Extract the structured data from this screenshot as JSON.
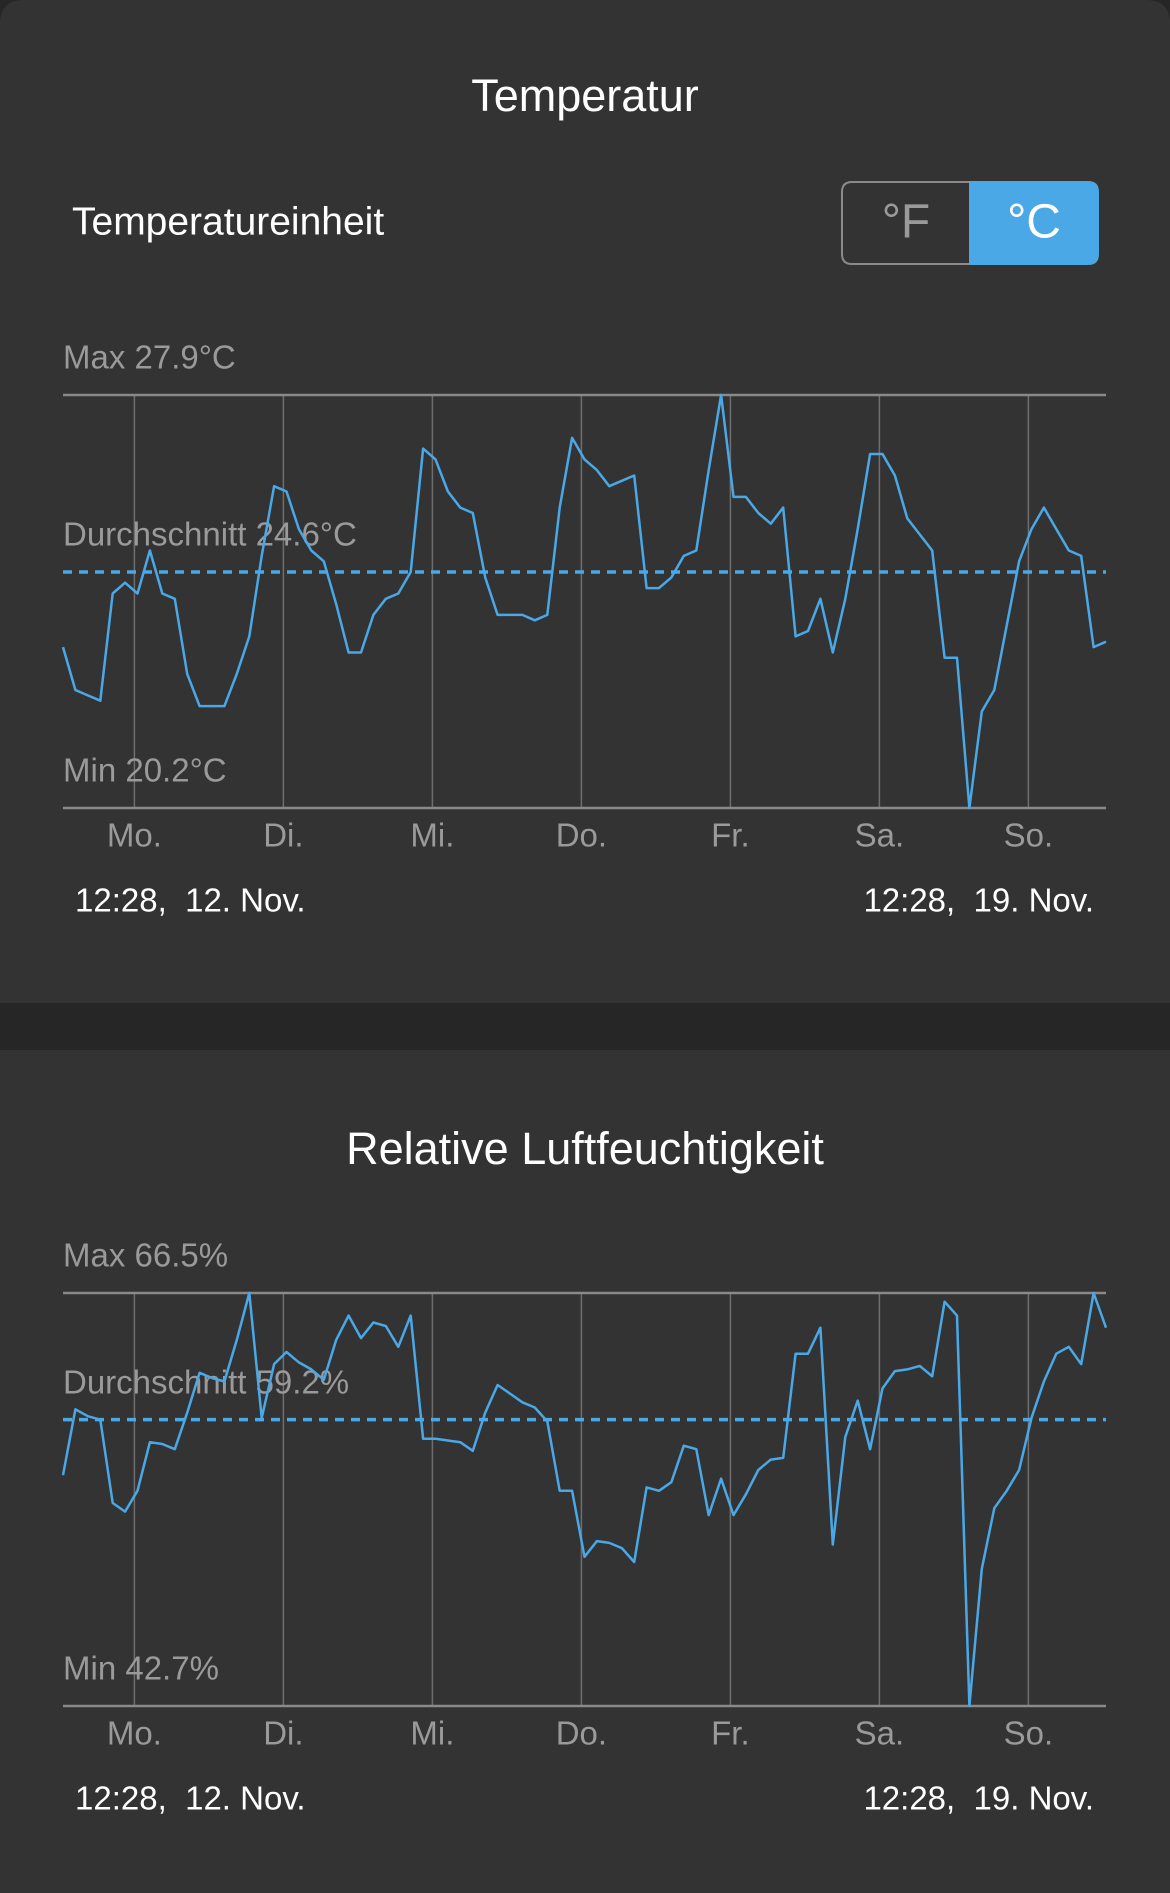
{
  "settings": {
    "unit_label": "Temperatureinheit",
    "unit_options": [
      "°F",
      "°C"
    ],
    "selected_unit": 1,
    "accent_color": "#4aa8e6"
  },
  "chart_data": [
    {
      "type": "line",
      "title": "Temperatur",
      "x": [
        0,
        2,
        4,
        6,
        8,
        10,
        12,
        14,
        16,
        18,
        20,
        22,
        24,
        26,
        28,
        30,
        32,
        34,
        36,
        38,
        40,
        42,
        44,
        46,
        48,
        50,
        52,
        54,
        56,
        58,
        60,
        62,
        64,
        66,
        68,
        70,
        72,
        74,
        76,
        78,
        80,
        82,
        84,
        86,
        88,
        90,
        92,
        94,
        96,
        98,
        100,
        102,
        104,
        106,
        108,
        110,
        112,
        114,
        116,
        118,
        120,
        122,
        124,
        126,
        128,
        130,
        132,
        134,
        136,
        138,
        140,
        142,
        144,
        146,
        148,
        150,
        152,
        154,
        156,
        158,
        160,
        162,
        164,
        166,
        168
      ],
      "series": [
        {
          "color": "#4aa8e6",
          "values": [
            23.2,
            22.4,
            22.3,
            22.2,
            24.2,
            24.4,
            24.2,
            25.0,
            24.2,
            24.1,
            22.7,
            22.1,
            22.1,
            22.1,
            22.7,
            23.4,
            24.9,
            26.2,
            26.1,
            25.4,
            25.0,
            24.8,
            24.0,
            23.1,
            23.1,
            23.8,
            24.1,
            24.2,
            24.6,
            26.9,
            26.7,
            26.1,
            25.8,
            25.7,
            24.5,
            23.8,
            23.8,
            23.8,
            23.7,
            23.8,
            25.8,
            27.1,
            26.7,
            26.5,
            26.2,
            26.3,
            26.4,
            24.3,
            24.3,
            24.5,
            24.9,
            25.0,
            26.5,
            27.9,
            26.0,
            26.0,
            25.7,
            25.5,
            25.8,
            23.4,
            23.5,
            24.1,
            23.1,
            24.1,
            25.4,
            26.8,
            26.8,
            26.4,
            25.6,
            25.3,
            25.0,
            23.0,
            23.0,
            20.2,
            22.0,
            22.4,
            23.6,
            24.8,
            25.4,
            25.8,
            25.4,
            25.0,
            24.9,
            23.2,
            23.3
          ]
        }
      ],
      "xlim": [
        0,
        168
      ],
      "xticks": [
        {
          "value": 11.5,
          "label": "Mo."
        },
        {
          "value": 35.5,
          "label": "Di."
        },
        {
          "value": 59.5,
          "label": "Mi."
        },
        {
          "value": 83.5,
          "label": "Do."
        },
        {
          "value": 107.5,
          "label": "Fr."
        },
        {
          "value": 131.5,
          "label": "Sa."
        },
        {
          "value": 155.5,
          "label": "So."
        }
      ],
      "ylim": [
        20.2,
        27.9
      ],
      "reference_lines": [
        {
          "value": 27.9,
          "label": "Max 27.9°C"
        },
        {
          "value": 24.6,
          "label": "Durchschnitt 24.6°C",
          "dashed": true
        },
        {
          "value": 20.2,
          "label": "Min 20.2°C"
        }
      ],
      "start_label": "12:28,  12. Nov.",
      "end_label": "12:28,  19. Nov."
    },
    {
      "type": "line",
      "title": "Relative Luftfeuchtigkeit",
      "x": [
        0,
        2,
        4,
        6,
        8,
        10,
        12,
        14,
        16,
        18,
        20,
        22,
        24,
        26,
        28,
        30,
        32,
        34,
        36,
        38,
        40,
        42,
        44,
        46,
        48,
        50,
        52,
        54,
        56,
        58,
        60,
        62,
        64,
        66,
        68,
        70,
        72,
        74,
        76,
        78,
        80,
        82,
        84,
        86,
        88,
        90,
        92,
        94,
        96,
        98,
        100,
        102,
        104,
        106,
        108,
        110,
        112,
        114,
        116,
        118,
        120,
        122,
        124,
        126,
        128,
        130,
        132,
        134,
        136,
        138,
        140,
        142,
        144,
        146,
        148,
        150,
        152,
        154,
        156,
        158,
        160,
        162,
        164,
        166,
        168
      ],
      "series": [
        {
          "color": "#4aa8e6",
          "values": [
            56.0,
            59.8,
            59.4,
            59.2,
            54.4,
            53.9,
            55.1,
            57.9,
            57.8,
            57.5,
            59.6,
            61.9,
            61.6,
            61.4,
            63.8,
            66.5,
            59.3,
            62.4,
            63.1,
            62.5,
            62.1,
            61.5,
            63.8,
            65.2,
            63.9,
            64.8,
            64.6,
            63.4,
            65.2,
            58.1,
            58.1,
            58.0,
            57.9,
            57.4,
            59.6,
            61.2,
            60.7,
            60.2,
            59.9,
            59.1,
            55.1,
            55.1,
            51.3,
            52.2,
            52.1,
            51.8,
            51.0,
            55.3,
            55.1,
            55.6,
            57.7,
            57.5,
            53.7,
            55.8,
            53.7,
            54.9,
            56.3,
            56.9,
            57.0,
            63.0,
            63.0,
            64.5,
            52.0,
            58.2,
            60.3,
            57.5,
            61.0,
            62.0,
            62.1,
            62.3,
            61.7,
            66.0,
            65.2,
            42.7,
            50.6,
            54.1,
            55.1,
            56.3,
            59.3,
            61.4,
            63.0,
            63.4,
            62.4,
            66.5,
            64.5
          ]
        }
      ],
      "xlim": [
        0,
        168
      ],
      "xticks": [
        {
          "value": 11.5,
          "label": "Mo."
        },
        {
          "value": 35.5,
          "label": "Di."
        },
        {
          "value": 59.5,
          "label": "Mi."
        },
        {
          "value": 83.5,
          "label": "Do."
        },
        {
          "value": 107.5,
          "label": "Fr."
        },
        {
          "value": 131.5,
          "label": "Sa."
        },
        {
          "value": 155.5,
          "label": "So."
        }
      ],
      "ylim": [
        42.7,
        66.5
      ],
      "reference_lines": [
        {
          "value": 66.5,
          "label": "Max 66.5%"
        },
        {
          "value": 59.2,
          "label": "Durchschnitt 59.2%",
          "dashed": true
        },
        {
          "value": 42.7,
          "label": "Min 42.7%"
        }
      ],
      "start_label": "12:28,  12. Nov.",
      "end_label": "12:28,  19. Nov."
    }
  ]
}
